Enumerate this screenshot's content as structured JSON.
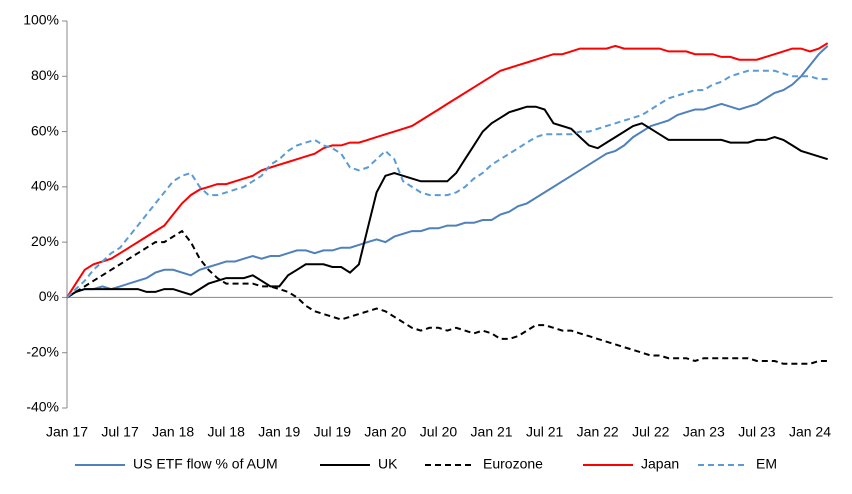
{
  "chart_data": {
    "type": "line",
    "categories": [
      "Jan 17",
      null,
      null,
      null,
      null,
      null,
      "Jul 17",
      null,
      null,
      null,
      null,
      null,
      "Jan 18",
      null,
      null,
      null,
      null,
      null,
      "Jul 18",
      null,
      null,
      null,
      null,
      null,
      "Jan 19",
      null,
      null,
      null,
      null,
      null,
      "Jul 19",
      null,
      null,
      null,
      null,
      null,
      "Jan 20",
      null,
      null,
      null,
      null,
      null,
      "Jul 20",
      null,
      null,
      null,
      null,
      null,
      "Jan 21",
      null,
      null,
      null,
      null,
      null,
      "Jul 21",
      null,
      null,
      null,
      null,
      null,
      "Jan 22",
      null,
      null,
      null,
      null,
      null,
      "Jul 22",
      null,
      null,
      null,
      null,
      null,
      "Jan 23",
      null,
      null,
      null,
      null,
      null,
      "Jul 23",
      null,
      null,
      null,
      null,
      null,
      "Jan 24",
      null,
      null
    ],
    "ylim": [
      -40,
      100
    ],
    "yticks": [
      {
        "value": -40,
        "label": "-40%"
      },
      {
        "value": -20,
        "label": "-20%"
      },
      {
        "value": 0,
        "label": "0%"
      },
      {
        "value": 20,
        "label": "20%"
      },
      {
        "value": 40,
        "label": "40%"
      },
      {
        "value": 60,
        "label": "60%"
      },
      {
        "value": 80,
        "label": "80%"
      },
      {
        "value": 100,
        "label": "100%"
      }
    ],
    "grid": false,
    "legend": "bottom",
    "series": [
      {
        "name": "US ETF flow % of AUM",
        "color": "#4f81bd",
        "style": "solid",
        "values": [
          0,
          2,
          3,
          3,
          4,
          3,
          4,
          5,
          6,
          7,
          9,
          10,
          10,
          9,
          8,
          10,
          11,
          12,
          13,
          13,
          14,
          15,
          14,
          15,
          15,
          16,
          17,
          17,
          16,
          17,
          17,
          18,
          18,
          19,
          20,
          21,
          20,
          22,
          23,
          24,
          24,
          25,
          25,
          26,
          26,
          27,
          27,
          28,
          28,
          30,
          31,
          33,
          34,
          36,
          38,
          40,
          42,
          44,
          46,
          48,
          50,
          52,
          53,
          55,
          58,
          60,
          62,
          63,
          64,
          66,
          67,
          68,
          68,
          69,
          70,
          69,
          68,
          69,
          70,
          72,
          74,
          75,
          77,
          80,
          84,
          88,
          91
        ]
      },
      {
        "name": "UK",
        "color": "#000000",
        "style": "solid",
        "values": [
          0,
          2,
          3,
          3,
          3,
          3,
          3,
          3,
          3,
          2,
          2,
          3,
          3,
          2,
          1,
          3,
          5,
          6,
          7,
          7,
          7,
          8,
          6,
          4,
          4,
          8,
          10,
          12,
          12,
          12,
          11,
          11,
          9,
          12,
          25,
          38,
          44,
          45,
          44,
          43,
          42,
          42,
          42,
          42,
          45,
          50,
          55,
          60,
          63,
          65,
          67,
          68,
          69,
          69,
          68,
          63,
          62,
          61,
          58,
          55,
          54,
          56,
          58,
          60,
          62,
          63,
          61,
          59,
          57,
          57,
          57,
          57,
          57,
          57,
          57,
          56,
          56,
          56,
          57,
          57,
          58,
          57,
          55,
          53,
          52,
          51,
          50
        ]
      },
      {
        "name": "Eurozone",
        "color": "#000000",
        "style": "dashed",
        "values": [
          0,
          2,
          4,
          6,
          8,
          10,
          12,
          14,
          16,
          18,
          20,
          20,
          22,
          24,
          20,
          14,
          10,
          7,
          5,
          5,
          5,
          5,
          4,
          4,
          3,
          2,
          0,
          -3,
          -5,
          -6,
          -7,
          -8,
          -7,
          -6,
          -5,
          -4,
          -5,
          -7,
          -9,
          -11,
          -12,
          -11,
          -11,
          -12,
          -11,
          -12,
          -13,
          -12,
          -13,
          -15,
          -15,
          -14,
          -12,
          -10,
          -10,
          -11,
          -12,
          -12,
          -13,
          -14,
          -15,
          -16,
          -17,
          -18,
          -19,
          -20,
          -21,
          -21,
          -22,
          -22,
          -22,
          -23,
          -22,
          -22,
          -22,
          -22,
          -22,
          -22,
          -23,
          -23,
          -23,
          -24,
          -24,
          -24,
          -24,
          -23,
          -23
        ]
      },
      {
        "name": "Japan",
        "color": "#ff0000",
        "style": "solid",
        "values": [
          0,
          5,
          10,
          12,
          13,
          14,
          16,
          18,
          20,
          22,
          24,
          26,
          30,
          34,
          37,
          39,
          40,
          41,
          41,
          42,
          43,
          44,
          46,
          47,
          48,
          49,
          50,
          51,
          52,
          54,
          55,
          55,
          56,
          56,
          57,
          58,
          59,
          60,
          61,
          62,
          64,
          66,
          68,
          70,
          72,
          74,
          76,
          78,
          80,
          82,
          83,
          84,
          85,
          86,
          87,
          88,
          88,
          89,
          90,
          90,
          90,
          90,
          91,
          90,
          90,
          90,
          90,
          90,
          89,
          89,
          89,
          88,
          88,
          88,
          87,
          87,
          86,
          86,
          86,
          87,
          88,
          89,
          90,
          90,
          89,
          90,
          92
        ]
      },
      {
        "name": "EM",
        "color": "#5b9bd5",
        "style": "dashed",
        "values": [
          0,
          3,
          6,
          10,
          13,
          16,
          18,
          22,
          26,
          30,
          34,
          38,
          42,
          44,
          45,
          40,
          37,
          37,
          38,
          39,
          40,
          42,
          44,
          48,
          50,
          53,
          55,
          56,
          57,
          55,
          54,
          52,
          47,
          46,
          47,
          50,
          53,
          50,
          42,
          40,
          38,
          37,
          37,
          37,
          38,
          40,
          43,
          45,
          48,
          50,
          52,
          54,
          56,
          58,
          59,
          59,
          59,
          59,
          60,
          60,
          61,
          62,
          63,
          64,
          65,
          66,
          68,
          70,
          72,
          73,
          74,
          75,
          75,
          77,
          78,
          80,
          81,
          82,
          82,
          82,
          82,
          81,
          80,
          80,
          80,
          79,
          79
        ]
      }
    ]
  }
}
